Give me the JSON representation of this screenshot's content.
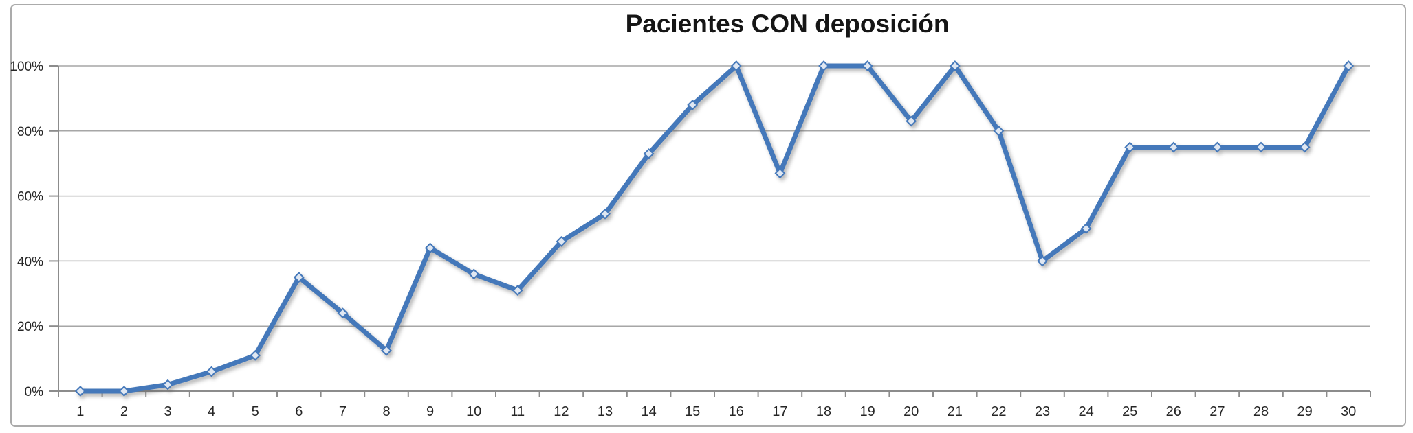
{
  "chart": {
    "colors": {
      "line": "#4478ba",
      "marker_fill": "#dfe7f2",
      "marker_stroke": "#4478ba",
      "grid": "#a6a6a6",
      "axis": "#8c8c8c",
      "tick_text": "#262626",
      "title_text": "#151515",
      "frame": "#ababab",
      "background": "#ffffff"
    }
  },
  "chart_data": {
    "type": "line",
    "title": "Pacientes CON deposición",
    "xlabel": "",
    "ylabel": "",
    "x": [
      "1",
      "2",
      "3",
      "4",
      "5",
      "6",
      "7",
      "8",
      "9",
      "10",
      "11",
      "12",
      "13",
      "14",
      "15",
      "16",
      "17",
      "18",
      "19",
      "20",
      "21",
      "22",
      "23",
      "24",
      "25",
      "26",
      "27",
      "28",
      "29",
      "30"
    ],
    "series": [
      {
        "name": "Pacientes CON deposición",
        "values": [
          0,
          0,
          2,
          6,
          11,
          35,
          24,
          12.5,
          44,
          36,
          31,
          46,
          54.5,
          73,
          88,
          100,
          67,
          100,
          100,
          83,
          100,
          80,
          40,
          50,
          75,
          75,
          75,
          75,
          75,
          100
        ]
      }
    ],
    "ylim": [
      0,
      100
    ],
    "yticks": [
      "0%",
      "20%",
      "40%",
      "60%",
      "80%",
      "100%"
    ],
    "grid": "horizontal",
    "legend": "none",
    "marker": "diamond"
  }
}
